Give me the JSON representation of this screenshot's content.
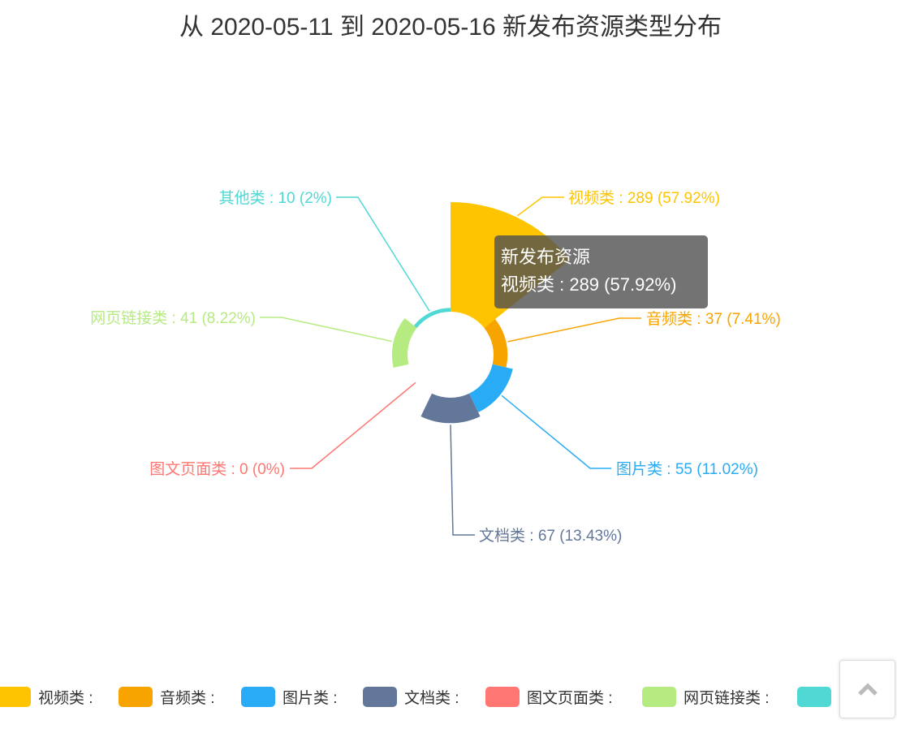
{
  "chart_data": {
    "type": "pie",
    "rose_type": "area",
    "title": "从 2020-05-11 到 2020-05-16 新发布资源类型分布",
    "series_name": "新发布资源",
    "slices": [
      {
        "name": "视频类",
        "value": 289,
        "percent": "57.92%",
        "label": "视频类 : 289 (57.92%)",
        "color": "#fec400"
      },
      {
        "name": "音频类",
        "value": 37,
        "percent": "7.41%",
        "label": "音频类 : 37 (7.41%)",
        "color": "#f7a400"
      },
      {
        "name": "图片类",
        "value": 55,
        "percent": "11.02%",
        "label": "图片类 : 55 (11.02%)",
        "color": "#2aabf6"
      },
      {
        "name": "文档类",
        "value": 67,
        "percent": "13.43%",
        "label": "文档类 : 67 (13.43%)",
        "color": "#62779a"
      },
      {
        "name": "图文页面类",
        "value": 0,
        "percent": "0%",
        "label": "图文页面类 : 0 (0%)",
        "color": "#ff7672"
      },
      {
        "name": "网页链接类",
        "value": 41,
        "percent": "8.22%",
        "label": "网页链接类 : 41 (8.22%)",
        "color": "#b6eb82"
      },
      {
        "name": "其他类",
        "value": 10,
        "percent": "2%",
        "label": "其他类 : 10 (2%)",
        "color": "#4fd8d4"
      }
    ],
    "legend": {
      "placement": "bottom",
      "items": [
        "视频类 :",
        "音频类 :",
        "图片类 :",
        "文档类 :",
        "图文页面类 :",
        "网页链接类 :",
        ""
      ]
    }
  },
  "tooltip": {
    "title": "新发布资源",
    "line": "视频类 : 289 (57.92%)"
  },
  "back_to_top": {
    "icon": "chevron-up-icon"
  }
}
